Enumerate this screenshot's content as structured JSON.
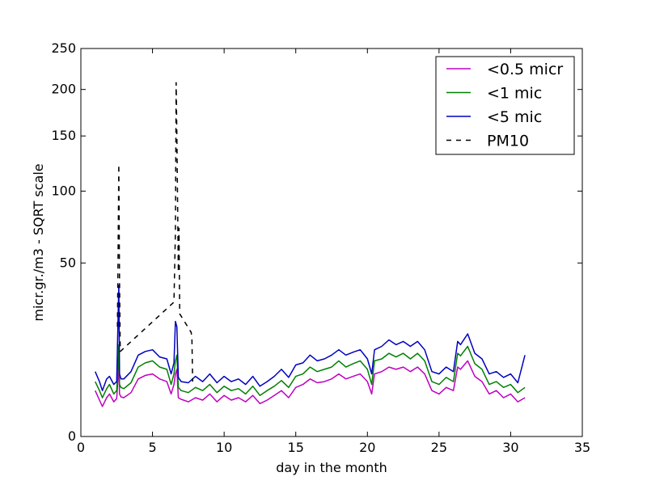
{
  "chart_data": {
    "type": "line",
    "title": "",
    "xlabel": "day in the month",
    "ylabel": "micr.gr./m3 - SQRT scale",
    "xlim": [
      0,
      35
    ],
    "ylim": [
      0,
      250
    ],
    "y_scale": "sqrt",
    "grid": false,
    "legend_position": "top-right",
    "xticks": [
      0,
      5,
      10,
      15,
      20,
      25,
      30,
      35
    ],
    "xtick_labels": [
      "0",
      "5",
      "10",
      "15",
      "20",
      "25",
      "30",
      "35"
    ],
    "yticks": [
      0,
      50,
      100,
      150,
      200,
      250
    ],
    "ytick_labels": [
      "0",
      "50",
      "100",
      "150",
      "200",
      "250"
    ],
    "series": [
      {
        "name": "<0.5 micr",
        "color": "#bf00bf",
        "style": "solid",
        "x": [
          1.0,
          1.3,
          1.5,
          1.8,
          2.0,
          2.3,
          2.5,
          2.6,
          2.65,
          2.7,
          2.8,
          3.0,
          3.5,
          4.0,
          4.5,
          5.0,
          5.5,
          6.0,
          6.3,
          6.5,
          6.6,
          6.7,
          6.8,
          7.0,
          7.5,
          8.0,
          8.5,
          9.0,
          9.5,
          10.0,
          10.5,
          11.0,
          11.5,
          12.0,
          12.5,
          13.0,
          13.5,
          14.0,
          14.5,
          15.0,
          15.5,
          16.0,
          16.5,
          17.0,
          17.5,
          18.0,
          18.5,
          19.0,
          19.5,
          20.0,
          20.3,
          20.5,
          21.0,
          21.5,
          22.0,
          22.5,
          23.0,
          23.5,
          24.0,
          24.5,
          25.0,
          25.5,
          26.0,
          26.3,
          26.5,
          27.0,
          27.5,
          28.0,
          28.5,
          29.0,
          29.5,
          30.0,
          30.5,
          31.0
        ],
        "y": [
          3.5,
          2.2,
          1.5,
          2.5,
          3.0,
          2.0,
          2.4,
          6.0,
          9.0,
          3.0,
          2.6,
          2.5,
          3.2,
          5.5,
          6.2,
          6.5,
          5.5,
          5.0,
          3.0,
          4.5,
          6.5,
          7.5,
          2.5,
          2.3,
          2.0,
          2.5,
          2.2,
          3.0,
          2.0,
          2.8,
          2.2,
          2.5,
          2.0,
          2.8,
          1.8,
          2.2,
          2.8,
          3.5,
          2.5,
          4.0,
          4.5,
          5.5,
          4.8,
          5.0,
          5.5,
          6.5,
          5.5,
          6.0,
          6.5,
          5.0,
          3.0,
          6.5,
          7.0,
          8.0,
          7.5,
          8.0,
          7.0,
          8.0,
          6.5,
          3.5,
          3.0,
          4.0,
          3.5,
          8.0,
          7.5,
          9.5,
          6.0,
          5.0,
          3.0,
          3.5,
          2.5,
          3.0,
          2.0,
          2.5
        ]
      },
      {
        "name": "<1 mic",
        "color": "#008000",
        "style": "solid",
        "x": [
          1.0,
          1.3,
          1.5,
          1.8,
          2.0,
          2.3,
          2.5,
          2.6,
          2.65,
          2.7,
          2.8,
          3.0,
          3.5,
          4.0,
          4.5,
          5.0,
          5.5,
          6.0,
          6.3,
          6.5,
          6.6,
          6.7,
          6.8,
          7.0,
          7.5,
          8.0,
          8.5,
          9.0,
          9.5,
          10.0,
          10.5,
          11.0,
          11.5,
          12.0,
          12.5,
          13.0,
          13.5,
          14.0,
          14.5,
          15.0,
          15.5,
          16.0,
          16.5,
          17.0,
          17.5,
          18.0,
          18.5,
          19.0,
          19.5,
          20.0,
          20.3,
          20.5,
          21.0,
          21.5,
          22.0,
          22.5,
          23.0,
          23.5,
          24.0,
          24.5,
          25.0,
          25.5,
          26.0,
          26.3,
          26.5,
          27.0,
          27.5,
          28.0,
          28.5,
          29.0,
          29.5,
          30.0,
          30.5,
          31.0
        ],
        "y": [
          5.0,
          3.5,
          2.5,
          3.8,
          4.5,
          3.0,
          3.5,
          9.0,
          14.0,
          4.5,
          4.0,
          3.8,
          4.8,
          8.0,
          9.0,
          9.5,
          8.0,
          7.5,
          4.5,
          6.5,
          9.5,
          11.0,
          4.0,
          3.5,
          3.2,
          4.0,
          3.5,
          4.5,
          3.2,
          4.2,
          3.5,
          3.8,
          3.0,
          4.2,
          2.8,
          3.5,
          4.2,
          5.2,
          4.0,
          6.0,
          6.5,
          8.0,
          7.0,
          7.5,
          8.0,
          9.5,
          8.0,
          8.8,
          9.5,
          7.5,
          4.5,
          9.5,
          10.0,
          11.5,
          10.5,
          11.5,
          10.0,
          11.5,
          9.5,
          5.0,
          4.5,
          5.8,
          5.0,
          11.5,
          10.8,
          13.5,
          8.8,
          7.5,
          4.5,
          5.0,
          4.0,
          4.5,
          3.2,
          4.0
        ]
      },
      {
        "name": "<5 mic",
        "color": "#0000bf",
        "style": "solid",
        "x": [
          1.0,
          1.3,
          1.5,
          1.8,
          2.0,
          2.3,
          2.5,
          2.6,
          2.65,
          2.7,
          2.8,
          3.0,
          3.5,
          4.0,
          4.5,
          5.0,
          5.5,
          6.0,
          6.3,
          6.5,
          6.6,
          6.7,
          6.8,
          7.0,
          7.5,
          8.0,
          8.5,
          9.0,
          9.5,
          10.0,
          10.5,
          11.0,
          11.5,
          12.0,
          12.5,
          13.0,
          13.5,
          14.0,
          14.5,
          15.0,
          15.5,
          16.0,
          16.5,
          17.0,
          17.5,
          18.0,
          18.5,
          19.0,
          19.5,
          20.0,
          20.3,
          20.5,
          21.0,
          21.5,
          22.0,
          22.5,
          23.0,
          23.5,
          24.0,
          24.5,
          25.0,
          25.5,
          26.0,
          26.3,
          26.5,
          27.0,
          27.5,
          28.0,
          28.5,
          29.0,
          29.5,
          30.0,
          30.5,
          31.0
        ],
        "y": [
          7.0,
          5.0,
          3.5,
          5.5,
          6.0,
          4.5,
          5.0,
          25.0,
          38.0,
          6.5,
          5.5,
          5.5,
          7.0,
          11.0,
          12.0,
          12.5,
          10.5,
          10.0,
          6.5,
          9.0,
          22.0,
          20.0,
          5.8,
          5.0,
          4.8,
          6.0,
          5.0,
          6.5,
          4.8,
          6.0,
          5.0,
          5.5,
          4.5,
          6.0,
          4.2,
          5.0,
          6.0,
          7.5,
          5.8,
          8.5,
          9.0,
          11.0,
          9.5,
          10.0,
          11.0,
          12.5,
          11.0,
          11.8,
          12.5,
          10.0,
          6.5,
          12.5,
          13.5,
          15.5,
          14.0,
          15.0,
          13.5,
          15.0,
          12.5,
          7.0,
          6.5,
          8.0,
          7.0,
          15.0,
          14.0,
          17.5,
          11.5,
          10.0,
          6.5,
          7.0,
          5.8,
          6.5,
          4.8,
          11.0
        ]
      },
      {
        "name": "PM10",
        "color": "#000000",
        "style": "dashed",
        "x": [
          2.55,
          2.6,
          2.65,
          2.7,
          2.75,
          6.5,
          6.6,
          6.65,
          6.7,
          6.75,
          6.8,
          6.85,
          6.9,
          7.7,
          7.75,
          7.8
        ],
        "y": [
          20.0,
          60.0,
          123.0,
          40.0,
          12.0,
          30.0,
          70.0,
          208.0,
          150.0,
          90.0,
          45.0,
          72.0,
          25.0,
          18.0,
          16.0,
          5.0
        ]
      }
    ]
  }
}
